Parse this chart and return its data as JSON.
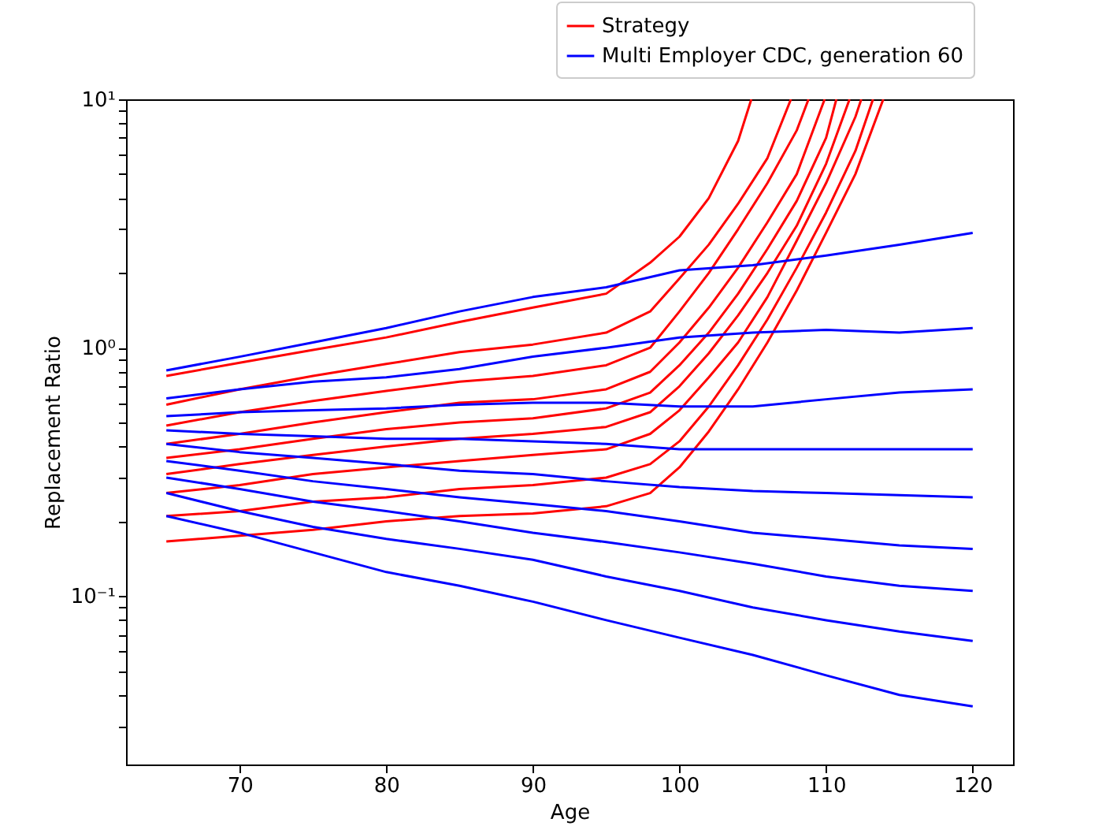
{
  "chart_data": {
    "type": "line",
    "xlabel": "Age",
    "ylabel": "Replacement Ratio",
    "log": "y",
    "grid": false,
    "legend": "top right",
    "marker": "none",
    "line_style": "solid",
    "xlim": [
      62.25,
      122.75
    ],
    "xticks": [
      70,
      80,
      90,
      100,
      110,
      120
    ],
    "ylim": [
      0.021,
      10
    ],
    "yticks": [
      {
        "value": 0.03,
        "label": null
      },
      {
        "value": 0.04,
        "label": null
      },
      {
        "value": 0.05,
        "label": null
      },
      {
        "value": 0.06,
        "label": null
      },
      {
        "value": 0.07,
        "label": null
      },
      {
        "value": 0.08,
        "label": null
      },
      {
        "value": 0.09,
        "label": null
      },
      {
        "value": 0.1,
        "label": "10⁻¹"
      },
      {
        "value": 0.2,
        "label": null
      },
      {
        "value": 0.3,
        "label": null
      },
      {
        "value": 0.4,
        "label": null
      },
      {
        "value": 0.5,
        "label": null
      },
      {
        "value": 0.6,
        "label": null
      },
      {
        "value": 0.7,
        "label": null
      },
      {
        "value": 0.8,
        "label": null
      },
      {
        "value": 0.9,
        "label": null
      },
      {
        "value": 1,
        "label": "10⁰"
      },
      {
        "value": 2,
        "label": null
      },
      {
        "value": 3,
        "label": null
      },
      {
        "value": 4,
        "label": null
      },
      {
        "value": 5,
        "label": null
      },
      {
        "value": 6,
        "label": null
      },
      {
        "value": 7,
        "label": null
      },
      {
        "value": 8,
        "label": null
      },
      {
        "value": 9,
        "label": null
      },
      {
        "value": 10,
        "label": "10¹"
      }
    ],
    "series": [
      {
        "name": "Strategy",
        "color": "#ff0000",
        "x": [
          65,
          70,
          75,
          80,
          85,
          90,
          95,
          98,
          100,
          102,
          104,
          104.9
        ],
        "values": [
          0.77,
          0.87,
          0.98,
          1.1,
          1.27,
          1.45,
          1.65,
          2.2,
          2.8,
          4.0,
          6.8,
          10
        ]
      },
      {
        "color": "#ff0000",
        "x": [
          65,
          70,
          75,
          80,
          85,
          90,
          95,
          98,
          100,
          102,
          104,
          106,
          107.6
        ],
        "values": [
          0.59,
          0.68,
          0.77,
          0.86,
          0.96,
          1.03,
          1.15,
          1.4,
          1.9,
          2.6,
          3.8,
          5.8,
          10
        ]
      },
      {
        "color": "#ff0000",
        "x": [
          65,
          70,
          75,
          80,
          85,
          90,
          95,
          98,
          100,
          102,
          104,
          106,
          108,
          108.8
        ],
        "values": [
          0.486,
          0.55,
          0.61,
          0.67,
          0.73,
          0.77,
          0.85,
          1.0,
          1.4,
          2.0,
          3.0,
          4.6,
          7.5,
          10
        ]
      },
      {
        "color": "#ff0000",
        "x": [
          65,
          70,
          75,
          80,
          85,
          90,
          95,
          98,
          100,
          102,
          104,
          106,
          108,
          109.9
        ],
        "values": [
          0.41,
          0.45,
          0.5,
          0.55,
          0.6,
          0.62,
          0.68,
          0.8,
          1.05,
          1.45,
          2.1,
          3.2,
          5.0,
          10
        ]
      },
      {
        "color": "#ff0000",
        "x": [
          65,
          70,
          75,
          80,
          85,
          90,
          95,
          98,
          100,
          102,
          104,
          106,
          108,
          110,
          110.7
        ],
        "values": [
          0.36,
          0.39,
          0.43,
          0.47,
          0.5,
          0.52,
          0.57,
          0.66,
          0.85,
          1.15,
          1.65,
          2.5,
          3.9,
          7.0,
          10
        ]
      },
      {
        "color": "#ff0000",
        "x": [
          65,
          70,
          75,
          80,
          85,
          90,
          95,
          98,
          100,
          102,
          104,
          106,
          108,
          110,
          111.6
        ],
        "values": [
          0.31,
          0.34,
          0.37,
          0.4,
          0.43,
          0.45,
          0.48,
          0.55,
          0.7,
          0.95,
          1.35,
          2.0,
          3.1,
          5.5,
          10
        ]
      },
      {
        "color": "#ff0000",
        "x": [
          65,
          70,
          75,
          80,
          85,
          90,
          95,
          98,
          100,
          102,
          104,
          106,
          108,
          110,
          112,
          112.4
        ],
        "values": [
          0.26,
          0.28,
          0.31,
          0.33,
          0.35,
          0.37,
          0.39,
          0.45,
          0.56,
          0.76,
          1.05,
          1.6,
          2.7,
          4.6,
          8.5,
          10
        ]
      },
      {
        "color": "#ff0000",
        "x": [
          65,
          70,
          75,
          80,
          85,
          90,
          95,
          98,
          100,
          102,
          104,
          106,
          108,
          110,
          112,
          113.2
        ],
        "values": [
          0.21,
          0.22,
          0.24,
          0.25,
          0.27,
          0.28,
          0.3,
          0.34,
          0.42,
          0.58,
          0.85,
          1.3,
          2.1,
          3.5,
          6.2,
          10
        ]
      },
      {
        "color": "#ff0000",
        "x": [
          65,
          70,
          75,
          80,
          85,
          90,
          95,
          98,
          100,
          102,
          104,
          106,
          108,
          110,
          112,
          113.9
        ],
        "values": [
          0.166,
          0.175,
          0.185,
          0.2,
          0.21,
          0.215,
          0.23,
          0.26,
          0.33,
          0.46,
          0.68,
          1.05,
          1.7,
          2.9,
          5.0,
          10
        ]
      },
      {
        "name": "Multi Employer CDC, generation 60",
        "color": "#0000ff",
        "x": [
          65,
          70,
          75,
          80,
          85,
          90,
          95,
          100,
          105,
          110,
          115,
          120
        ],
        "values": [
          0.81,
          0.92,
          1.05,
          1.2,
          1.4,
          1.6,
          1.75,
          2.05,
          2.15,
          2.35,
          2.6,
          2.9
        ]
      },
      {
        "color": "#0000ff",
        "x": [
          65,
          70,
          75,
          80,
          85,
          90,
          95,
          100,
          105,
          110,
          115,
          120
        ],
        "values": [
          0.625,
          0.68,
          0.73,
          0.76,
          0.82,
          0.92,
          1.0,
          1.1,
          1.15,
          1.18,
          1.15,
          1.2
        ]
      },
      {
        "color": "#0000ff",
        "x": [
          65,
          70,
          75,
          80,
          85,
          90,
          95,
          100,
          105,
          110,
          115,
          120
        ],
        "values": [
          0.53,
          0.55,
          0.56,
          0.57,
          0.59,
          0.6,
          0.6,
          0.58,
          0.58,
          0.62,
          0.66,
          0.68
        ]
      },
      {
        "color": "#0000ff",
        "x": [
          65,
          70,
          75,
          80,
          85,
          90,
          95,
          100,
          105,
          110,
          115,
          120
        ],
        "values": [
          0.465,
          0.45,
          0.44,
          0.43,
          0.43,
          0.42,
          0.41,
          0.39,
          0.39,
          0.39,
          0.39,
          0.39
        ]
      },
      {
        "color": "#0000ff",
        "x": [
          65,
          70,
          75,
          80,
          85,
          90,
          95,
          100,
          105,
          110,
          115,
          120
        ],
        "values": [
          0.41,
          0.38,
          0.36,
          0.34,
          0.32,
          0.31,
          0.29,
          0.275,
          0.265,
          0.26,
          0.255,
          0.25
        ]
      },
      {
        "color": "#0000ff",
        "x": [
          65,
          70,
          75,
          80,
          85,
          90,
          95,
          100,
          105,
          110,
          115,
          120
        ],
        "values": [
          0.35,
          0.32,
          0.29,
          0.27,
          0.25,
          0.235,
          0.22,
          0.2,
          0.18,
          0.17,
          0.16,
          0.155
        ]
      },
      {
        "color": "#0000ff",
        "x": [
          65,
          70,
          75,
          80,
          85,
          90,
          95,
          100,
          105,
          110,
          115,
          120
        ],
        "values": [
          0.3,
          0.27,
          0.24,
          0.22,
          0.2,
          0.18,
          0.165,
          0.15,
          0.135,
          0.12,
          0.11,
          0.105
        ]
      },
      {
        "color": "#0000ff",
        "x": [
          65,
          70,
          75,
          80,
          85,
          90,
          95,
          100,
          105,
          110,
          115,
          120
        ],
        "values": [
          0.26,
          0.22,
          0.19,
          0.17,
          0.155,
          0.14,
          0.12,
          0.105,
          0.09,
          0.08,
          0.072,
          0.066
        ]
      },
      {
        "color": "#0000ff",
        "x": [
          65,
          70,
          75,
          80,
          85,
          90,
          95,
          100,
          105,
          110,
          115,
          120
        ],
        "values": [
          0.21,
          0.18,
          0.15,
          0.125,
          0.11,
          0.095,
          0.08,
          0.068,
          0.058,
          0.048,
          0.04,
          0.036
        ]
      }
    ]
  }
}
